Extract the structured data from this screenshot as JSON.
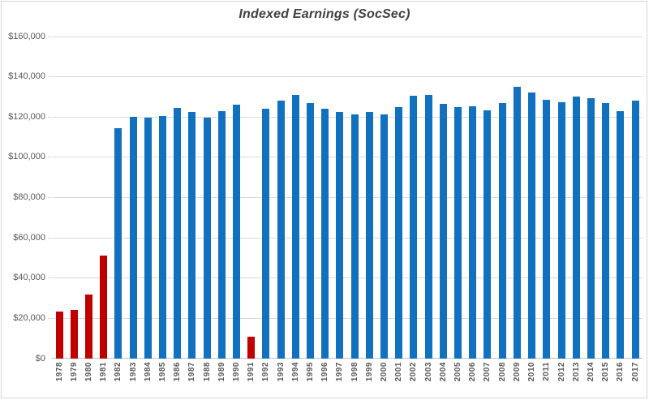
{
  "chart_data": {
    "type": "bar",
    "title": "Indexed Earnings (SocSec)",
    "xlabel": "",
    "ylabel": "",
    "grid": true,
    "legend": "none",
    "ylim": [
      0,
      160000
    ],
    "ytick_step": 20000,
    "yticks": [
      0,
      20000,
      40000,
      60000,
      80000,
      100000,
      120000,
      140000,
      160000
    ],
    "ytick_labels": [
      "$0",
      "$20,000",
      "$40,000",
      "$60,000",
      "$80,000",
      "$100,000",
      "$120,000",
      "$140,000",
      "$160,000"
    ],
    "categories": [
      "1978",
      "1979",
      "1980",
      "1981",
      "1982",
      "1983",
      "1984",
      "1985",
      "1986",
      "1987",
      "1988",
      "1989",
      "1990",
      "1991",
      "1992",
      "1993",
      "1994",
      "1995",
      "1996",
      "1997",
      "1998",
      "1999",
      "2000",
      "2001",
      "2002",
      "2003",
      "2004",
      "2005",
      "2006",
      "2007",
      "2008",
      "2009",
      "2010",
      "2011",
      "2012",
      "2013",
      "2014",
      "2015",
      "2016",
      "2017"
    ],
    "values": [
      23500,
      24000,
      32000,
      51000,
      114500,
      120000,
      119500,
      120500,
      124500,
      122500,
      119500,
      123000,
      126000,
      11000,
      124000,
      128000,
      131000,
      127000,
      124000,
      122500,
      121500,
      122500,
      121500,
      125000,
      130500,
      131000,
      126500,
      125000,
      125500,
      123500,
      127000,
      135000,
      132000,
      128500,
      127500,
      130000,
      129500,
      127000,
      123000,
      128000
    ],
    "highlight_years": [
      "1978",
      "1979",
      "1980",
      "1981",
      "1991"
    ],
    "colors": {
      "default_bar": "#1171be",
      "highlight_bar": "#c00000",
      "gridline": "#d9d9d9",
      "axis_line": "#bfbfbf",
      "tick_label": "#595959",
      "title": "#404040",
      "frame_border": "#d6d6d6"
    }
  }
}
